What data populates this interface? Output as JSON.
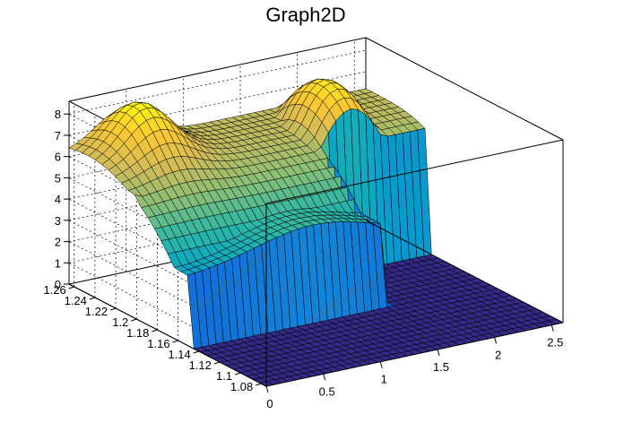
{
  "chart_data": {
    "type": "surface",
    "title": "Graph2D",
    "x_axis": {
      "range": [
        0,
        2.6
      ],
      "ticks": [
        0,
        0.5,
        1,
        1.5,
        2,
        2.5
      ],
      "tick_labels": [
        "0",
        "0.5",
        "1",
        "1.5",
        "2",
        "2.5"
      ]
    },
    "y_axis": {
      "range": [
        1.075,
        1.265
      ],
      "ticks": [
        1.08,
        1.1,
        1.12,
        1.14,
        1.16,
        1.18,
        1.2,
        1.22,
        1.24,
        1.26
      ],
      "tick_labels": [
        "1.08",
        "1.1",
        "1.12",
        "1.14",
        "1.16",
        "1.18",
        "1.2",
        "1.22",
        "1.24",
        "1.26"
      ]
    },
    "z_axis": {
      "range": [
        0,
        8.6
      ],
      "ticks": [
        0,
        1,
        2,
        3,
        4,
        5,
        6,
        7,
        8
      ],
      "tick_labels": [
        "0",
        "1",
        "2",
        "3",
        "4",
        "5",
        "6",
        "7",
        "8"
      ]
    },
    "grid": true,
    "palette": "kBird",
    "palette_colors": [
      "#352a87",
      "#0f5cdd",
      "#1481d6",
      "#06a4ca",
      "#2eb7a4",
      "#87bf77",
      "#d1bb59",
      "#fec832",
      "#f9fb0e"
    ],
    "surface_features": {
      "floor_value": 0,
      "plateau_value": 5.8,
      "ridge_peak": 8.5,
      "ridge_x": 0.45,
      "ridge_y_peak": 1.245,
      "dome_peak": 8.2,
      "dome_x": 1.95,
      "dome_y": 1.23,
      "support_x_max": 1.72,
      "support_y_min": 1.15
    }
  }
}
